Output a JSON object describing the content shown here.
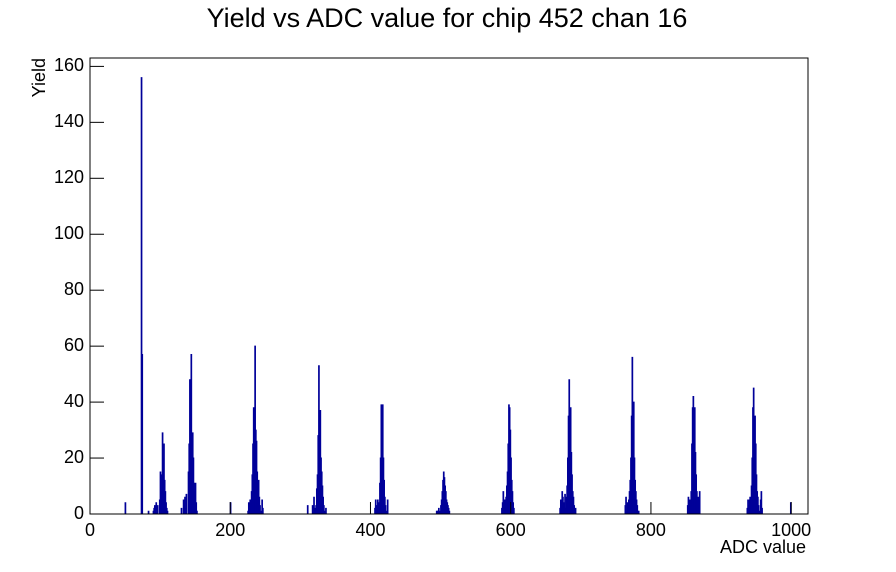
{
  "chart_data": {
    "type": "histogram",
    "title": "Yield vs ADC value for chip 452 chan 16",
    "x_label": "ADC value",
    "y_label": "Yield",
    "color": "#000099",
    "xlim": [
      0,
      1024
    ],
    "ylim": [
      0,
      163
    ],
    "xticks": [
      0,
      200,
      400,
      600,
      800,
      1000
    ],
    "yticks": [
      0,
      20,
      40,
      60,
      80,
      100,
      120,
      140,
      160
    ],
    "bins": [
      0,
      50,
      51,
      73,
      74,
      75,
      83,
      84,
      90,
      91,
      92,
      93,
      94,
      95,
      96,
      97,
      99,
      100,
      101,
      102,
      103,
      104,
      105,
      106,
      107,
      108,
      109,
      110,
      111,
      130,
      131,
      133,
      134,
      135,
      136,
      137,
      138,
      140,
      141,
      142,
      143,
      144,
      145,
      146,
      147,
      148,
      149,
      150,
      151,
      152,
      153,
      200,
      201,
      225,
      226,
      227,
      228,
      229,
      230,
      231,
      232,
      233,
      234,
      235,
      236,
      237,
      238,
      239,
      240,
      241,
      242,
      243,
      244,
      245,
      246,
      247,
      310,
      311,
      317,
      318,
      319,
      320,
      321,
      322,
      323,
      324,
      325,
      326,
      327,
      328,
      329,
      330,
      331,
      332,
      333,
      334,
      335,
      336,
      337,
      406,
      407,
      408,
      409,
      410,
      411,
      412,
      413,
      414,
      415,
      416,
      417,
      418,
      419,
      420,
      421,
      422,
      423,
      424,
      425,
      494,
      495,
      496,
      497,
      498,
      499,
      500,
      501,
      502,
      503,
      504,
      505,
      506,
      507,
      508,
      509,
      510,
      511,
      512,
      513,
      587,
      588,
      589,
      590,
      591,
      592,
      593,
      594,
      595,
      596,
      597,
      598,
      599,
      600,
      601,
      602,
      603,
      604,
      605,
      670,
      671,
      672,
      673,
      674,
      675,
      676,
      677,
      678,
      679,
      680,
      681,
      682,
      683,
      684,
      685,
      686,
      687,
      688,
      689,
      690,
      691,
      692,
      693,
      763,
      764,
      765,
      766,
      767,
      768,
      769,
      770,
      771,
      772,
      773,
      774,
      775,
      776,
      777,
      778,
      779,
      780,
      781,
      782,
      783,
      852,
      853,
      854,
      855,
      856,
      857,
      858,
      859,
      860,
      861,
      862,
      863,
      864,
      865,
      866,
      867,
      868,
      869,
      870,
      937,
      938,
      939,
      940,
      941,
      942,
      943,
      944,
      945,
      946,
      947,
      948,
      949,
      950,
      951,
      952,
      953,
      954,
      955,
      956,
      957,
      958,
      959,
      999,
      1000,
      1024
    ],
    "values": [
      0,
      4,
      0,
      156,
      57,
      0,
      1,
      0,
      1,
      2,
      3,
      1,
      4,
      0,
      3,
      0,
      5,
      15,
      8,
      14,
      29,
      20,
      25,
      12,
      8,
      4,
      2,
      1,
      0,
      2,
      0,
      5,
      3,
      6,
      2,
      7,
      0,
      15,
      25,
      48,
      35,
      57,
      28,
      29,
      20,
      11,
      8,
      11,
      4,
      1,
      0,
      4,
      0,
      1,
      4,
      0,
      5,
      2,
      8,
      14,
      25,
      38,
      22,
      60,
      30,
      26,
      15,
      9,
      12,
      6,
      3,
      0,
      1,
      5,
      2,
      0,
      3,
      0,
      3,
      0,
      6,
      2,
      1,
      3,
      9,
      14,
      28,
      53,
      22,
      37,
      20,
      15,
      10,
      6,
      3,
      1,
      0,
      2,
      0,
      2,
      5,
      0,
      3,
      5,
      0,
      4,
      11,
      20,
      39,
      30,
      39,
      20,
      12,
      6,
      3,
      0,
      1,
      5,
      0,
      1,
      1,
      1,
      2,
      0,
      1,
      3,
      5,
      8,
      12,
      15,
      13,
      10,
      8,
      5,
      4,
      3,
      2,
      1,
      0,
      2,
      4,
      8,
      2,
      5,
      4,
      6,
      10,
      15,
      25,
      39,
      38,
      30,
      20,
      12,
      8,
      4,
      2,
      0,
      2,
      5,
      0,
      8,
      6,
      3,
      4,
      7,
      2,
      6,
      10,
      20,
      35,
      48,
      30,
      38,
      22,
      14,
      8,
      6,
      3,
      1,
      2,
      0,
      3,
      6,
      1,
      4,
      2,
      5,
      8,
      12,
      20,
      35,
      56,
      38,
      40,
      20,
      12,
      8,
      5,
      3,
      1,
      1,
      0,
      3,
      6,
      0,
      5,
      2,
      8,
      25,
      38,
      42,
      30,
      38,
      22,
      14,
      8,
      5,
      6,
      2,
      8,
      0,
      2,
      5,
      3,
      5,
      6,
      2,
      10,
      20,
      38,
      45,
      33,
      35,
      25,
      14,
      8,
      6,
      3,
      1,
      0,
      5,
      8,
      2,
      0,
      4,
      0
    ]
  }
}
